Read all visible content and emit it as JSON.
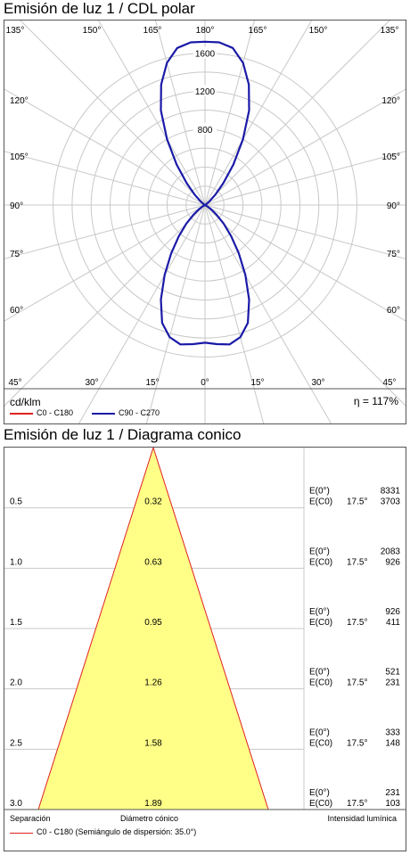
{
  "polar": {
    "title": "Emisión de luz 1 / CDL polar",
    "unit": "cd/klm",
    "efficiency": "η = 117%",
    "legend": [
      {
        "label": "C0 - C180",
        "color": "#e02020"
      },
      {
        "label": "C90 - C270",
        "color": "#1a1aa8"
      }
    ],
    "radial_ticks": [
      "800",
      "1200",
      "1600"
    ],
    "angle_labels": {
      "top": [
        "135°",
        "150°",
        "165°",
        "180°",
        "165°",
        "150°",
        "135°"
      ],
      "bottom": [
        "45°",
        "30°",
        "15°",
        "0°",
        "15°",
        "30°",
        "45°"
      ],
      "left": [
        "120°",
        "105°",
        "90°",
        "75°",
        "60°"
      ],
      "right": [
        "120°",
        "105°",
        "90°",
        "75°",
        "60°"
      ]
    }
  },
  "conic": {
    "title": "Emisión de luz 1 / Diagrama conico",
    "footer": {
      "separation": "Separación",
      "diameter": "Diámetro cónico",
      "intensity": "Intensidad lumínica",
      "legend": "C0 - C180 (Semiángulo de dispersión: 35.0°)"
    },
    "rows": [
      {
        "h": "0.5",
        "d": "0.32",
        "e0_label": "E(0°)",
        "e0": "8331",
        "ec_label": "E(C0)",
        "ec_angle": "17.5°",
        "ec": "3703"
      },
      {
        "h": "1.0",
        "d": "0.63",
        "e0_label": "E(0°)",
        "e0": "2083",
        "ec_label": "E(C0)",
        "ec_angle": "17.5°",
        "ec": "926"
      },
      {
        "h": "1.5",
        "d": "0.95",
        "e0_label": "E(0°)",
        "e0": "926",
        "ec_label": "E(C0)",
        "ec_angle": "17.5°",
        "ec": "411"
      },
      {
        "h": "2.0",
        "d": "1.26",
        "e0_label": "E(0°)",
        "e0": "521",
        "ec_label": "E(C0)",
        "ec_angle": "17.5°",
        "ec": "231"
      },
      {
        "h": "2.5",
        "d": "1.58",
        "e0_label": "E(0°)",
        "e0": "333",
        "ec_label": "E(C0)",
        "ec_angle": "17.5°",
        "ec": "148"
      },
      {
        "h": "3.0",
        "d": "1.89",
        "e0_label": "E(0°)",
        "e0": "231",
        "ec_label": "E(C0)",
        "ec_angle": "17.5°",
        "ec": "103"
      }
    ],
    "colors": {
      "fill": "#ffff88",
      "edge": "#e02020"
    }
  },
  "chart_data": [
    {
      "type": "line",
      "title": "Emisión de luz 1 / CDL polar",
      "ylabel": "cd/klm",
      "r_ticks": [
        800,
        1200,
        1600
      ],
      "angle_range_deg": [
        0,
        180
      ],
      "series": [
        {
          "name": "C0 - C180",
          "x": [],
          "values": []
        },
        {
          "name": "C90 - C270",
          "x": [
            0,
            5,
            10,
            15,
            20,
            25,
            30,
            35,
            40,
            45,
            50,
            55,
            60,
            65,
            70,
            75,
            80,
            85,
            90,
            95,
            100,
            105,
            110,
            115,
            120,
            125,
            130,
            135,
            140,
            145,
            150,
            155,
            160,
            165,
            170,
            175,
            180
          ],
          "values": [
            1450,
            1470,
            1490,
            1440,
            1320,
            1100,
            850,
            620,
            430,
            280,
            160,
            80,
            30,
            8,
            0,
            0,
            0,
            0,
            0,
            0,
            0,
            0,
            0,
            0,
            5,
            20,
            60,
            150,
            300,
            520,
            800,
            1100,
            1350,
            1550,
            1680,
            1720,
            1720
          ]
        }
      ]
    },
    {
      "type": "table",
      "title": "Emisión de luz 1 / Diagrama conico",
      "half_angle_deg": 35.0,
      "columns": [
        "Separación",
        "Diámetro cónico",
        "E(0°)",
        "E(C0) 17.5°"
      ],
      "rows": [
        [
          0.5,
          0.32,
          8331,
          3703
        ],
        [
          1.0,
          0.63,
          2083,
          926
        ],
        [
          1.5,
          0.95,
          926,
          411
        ],
        [
          2.0,
          1.26,
          521,
          231
        ],
        [
          2.5,
          1.58,
          333,
          148
        ],
        [
          3.0,
          1.89,
          231,
          103
        ]
      ]
    }
  ]
}
